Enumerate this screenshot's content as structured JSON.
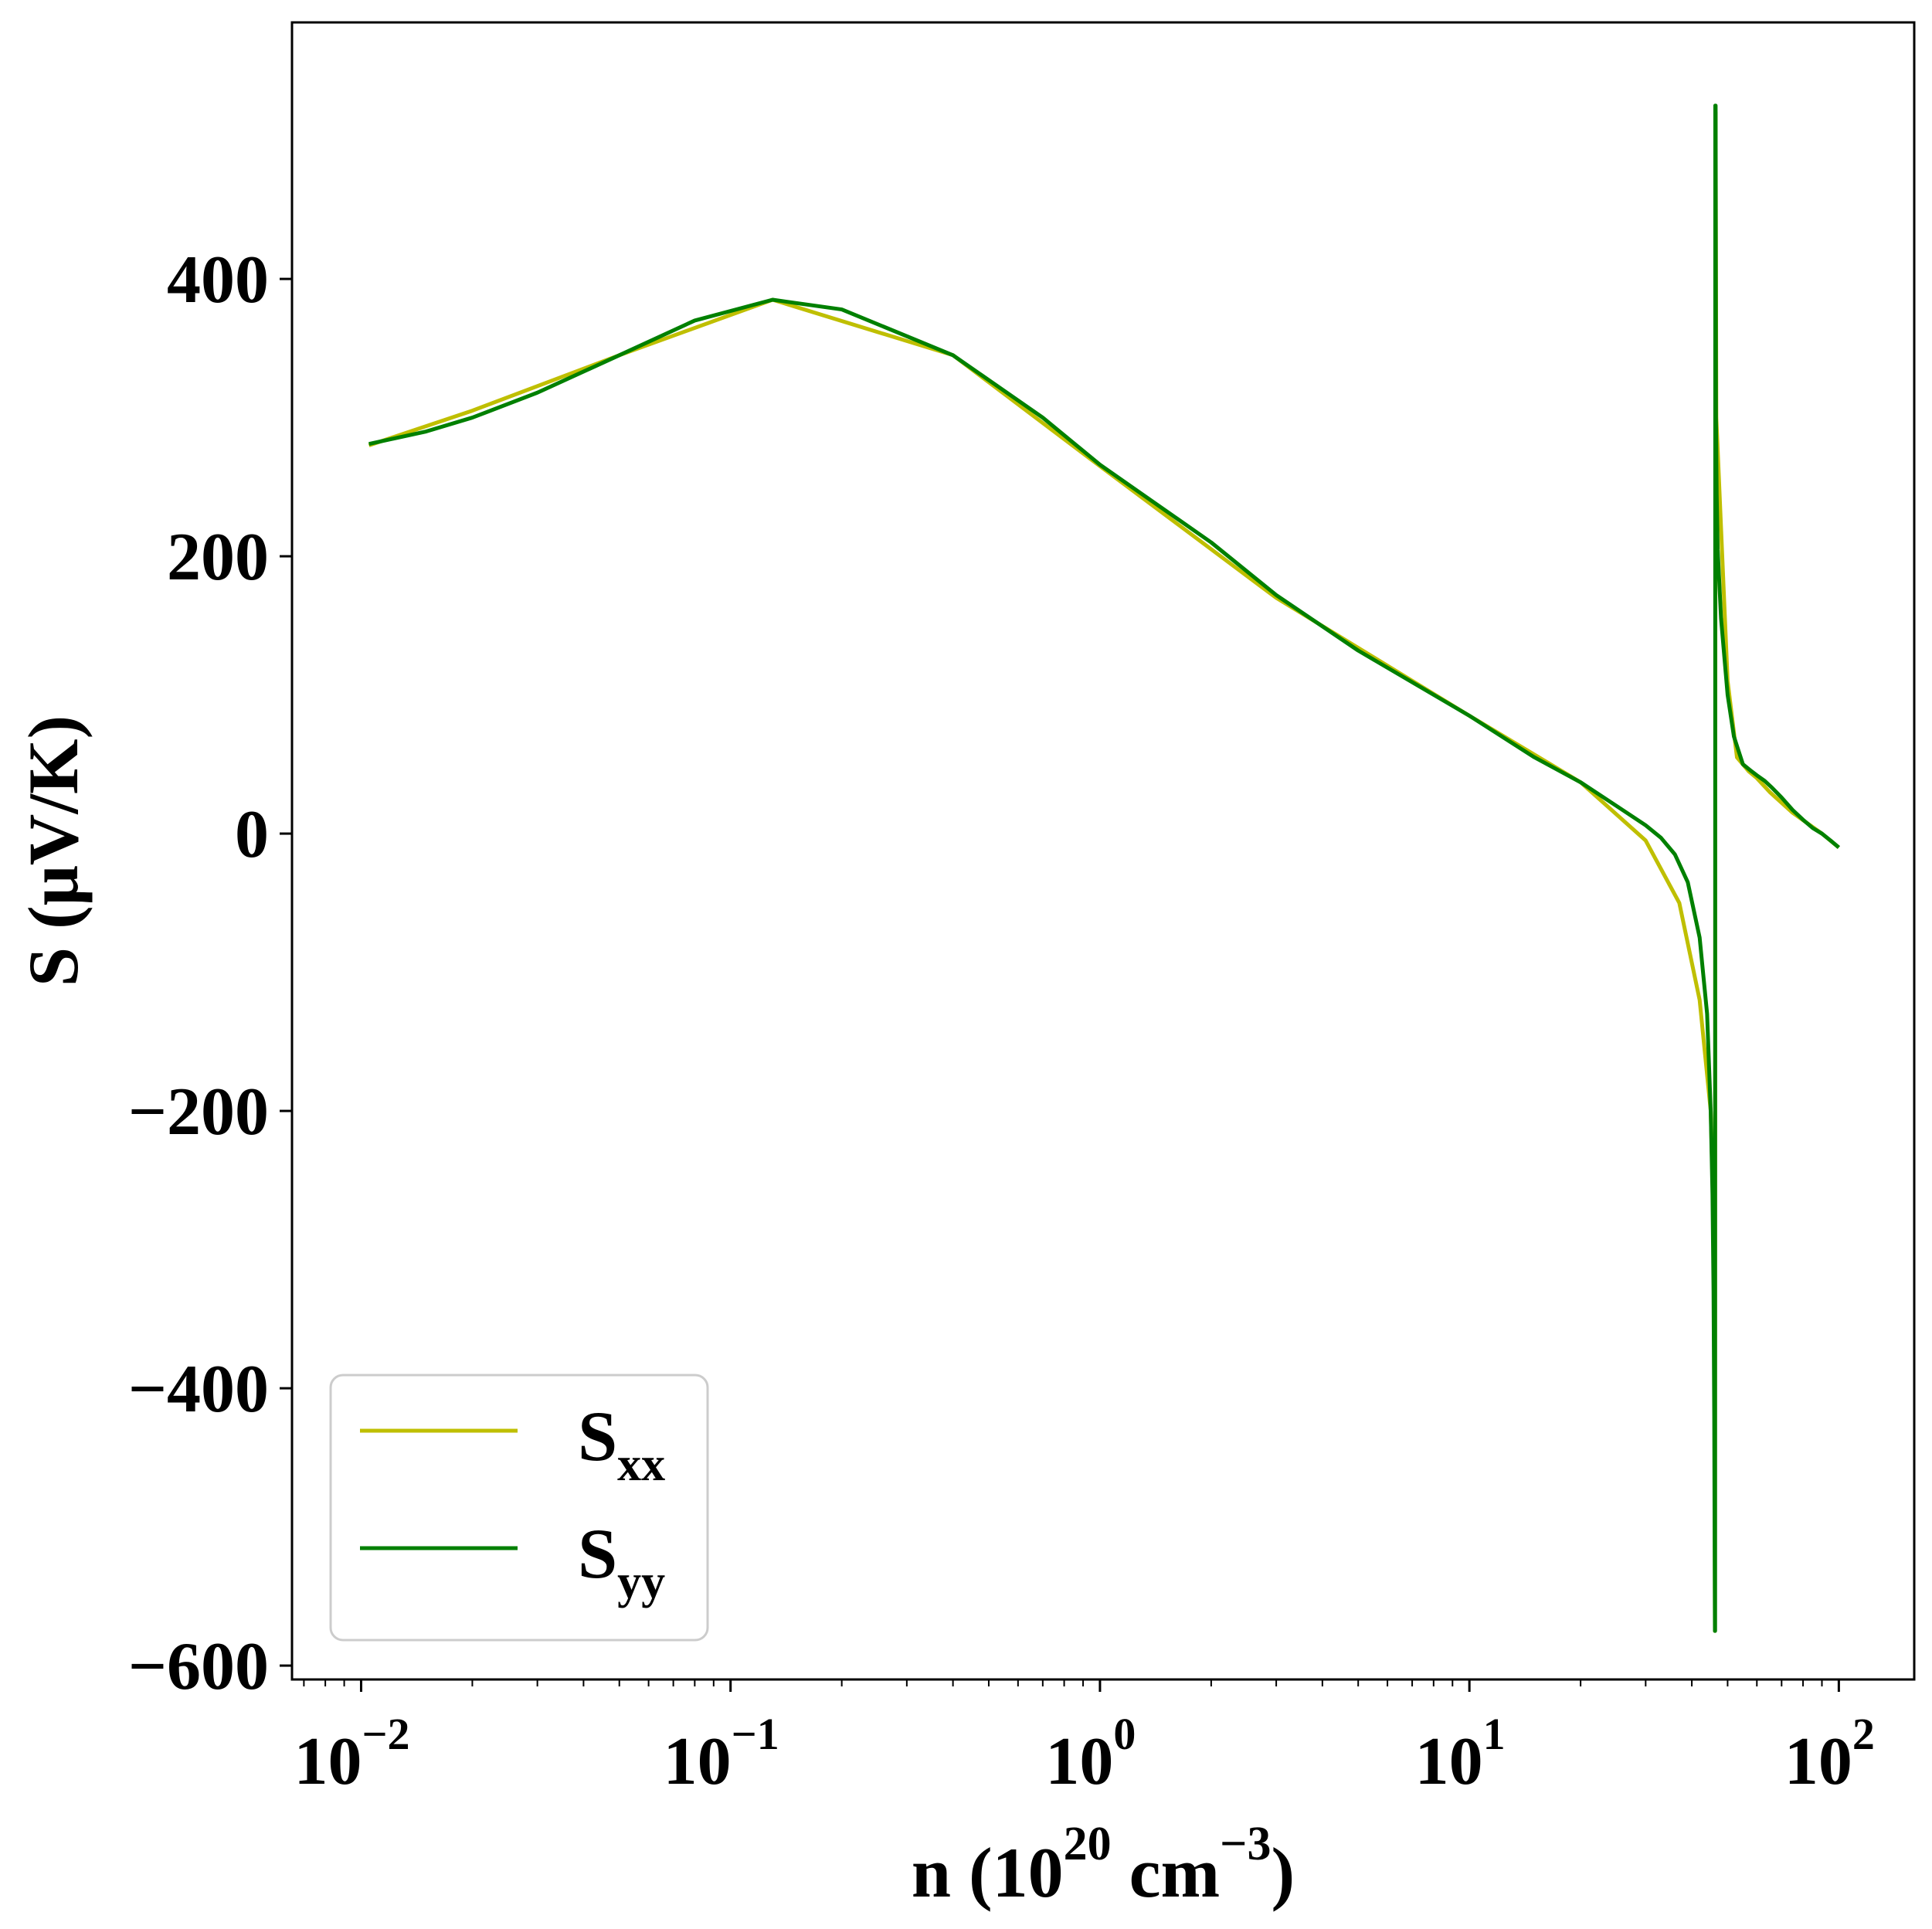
{
  "chart_data": {
    "type": "line",
    "title": "",
    "xlabel": {
      "base": "n (10",
      "sup1": "20",
      "mid": " cm",
      "sup2": "−3",
      "end": ")"
    },
    "ylabel": "S (μV/K)",
    "xscale": "log",
    "xlim": [
      0.0065,
      160
    ],
    "ylim": [
      -610,
      585
    ],
    "x_ticks": [
      {
        "value": 0.01,
        "base": "10",
        "exp": "−2"
      },
      {
        "value": 0.1,
        "base": "10",
        "exp": "−1"
      },
      {
        "value": 1,
        "base": "10",
        "exp": "0"
      },
      {
        "value": 10,
        "base": "10",
        "exp": "1"
      },
      {
        "value": 100,
        "base": "10",
        "exp": "2"
      }
    ],
    "y_ticks": [
      {
        "value": 400,
        "label": "400"
      },
      {
        "value": 200,
        "label": "200"
      },
      {
        "value": 0,
        "label": "0"
      },
      {
        "value": -200,
        "label": "−200"
      },
      {
        "value": -400,
        "label": "−400"
      },
      {
        "value": -600,
        "label": "−600"
      }
    ],
    "grid": false,
    "legend": {
      "placement": "lower-left",
      "entries": [
        {
          "series": "Sxx",
          "main": "S",
          "sub": "xx",
          "color": "#bfbf00"
        },
        {
          "series": "Syy",
          "main": "S",
          "sub": "yy",
          "color": "#008000"
        }
      ]
    },
    "series": [
      {
        "name": "Sxx",
        "color": "#bfbf00",
        "x": [
          0.0105,
          0.02,
          0.05,
          0.13,
          0.4,
          1.0,
          3.0,
          10.0,
          20.0,
          30.0,
          37.0,
          42.0,
          45.0,
          46.0,
          46.2,
          46.4,
          46.6,
          48.0,
          50.0,
          53.0,
          57.0,
          60.0,
          65.0,
          75.0,
          90.0,
          100.0
        ],
        "y": [
          280,
          305,
          345,
          385,
          345,
          265,
          170,
          85,
          37,
          -5,
          -50,
          -120,
          -200,
          -300,
          -575,
          520,
          300,
          220,
          110,
          55,
          45,
          40,
          30,
          15,
          0,
          -10
        ]
      },
      {
        "name": "Syy",
        "color": "#008000",
        "x": [
          0.0105,
          0.015,
          0.02,
          0.03,
          0.05,
          0.08,
          0.13,
          0.2,
          0.4,
          0.7,
          1.0,
          2.0,
          3.0,
          5.0,
          10.0,
          15.0,
          20.0,
          25.0,
          30.0,
          33.0,
          36.0,
          39.0,
          42.0,
          44.0,
          45.0,
          45.5,
          45.8,
          46.0,
          46.1,
          46.2,
          46.25,
          46.3,
          46.4,
          46.5,
          46.7,
          47.0,
          48.0,
          50.0,
          52.0,
          55.0,
          58.0,
          60.0,
          63.0,
          66.0,
          70.0,
          75.0,
          80.0,
          85.0,
          90.0,
          95.0,
          100.0
        ],
        "y": [
          281,
          290,
          300,
          318,
          345,
          370,
          385,
          378,
          345,
          300,
          266,
          210,
          172,
          132,
          85,
          55,
          37,
          20,
          6,
          -3,
          -15,
          -35,
          -75,
          -130,
          -200,
          -260,
          -330,
          -420,
          -500,
          -575,
          -575,
          525,
          525,
          300,
          245,
          205,
          155,
          100,
          70,
          50,
          45,
          42,
          38,
          33,
          26,
          17,
          10,
          4,
          0,
          -5,
          -10
        ]
      }
    ]
  }
}
